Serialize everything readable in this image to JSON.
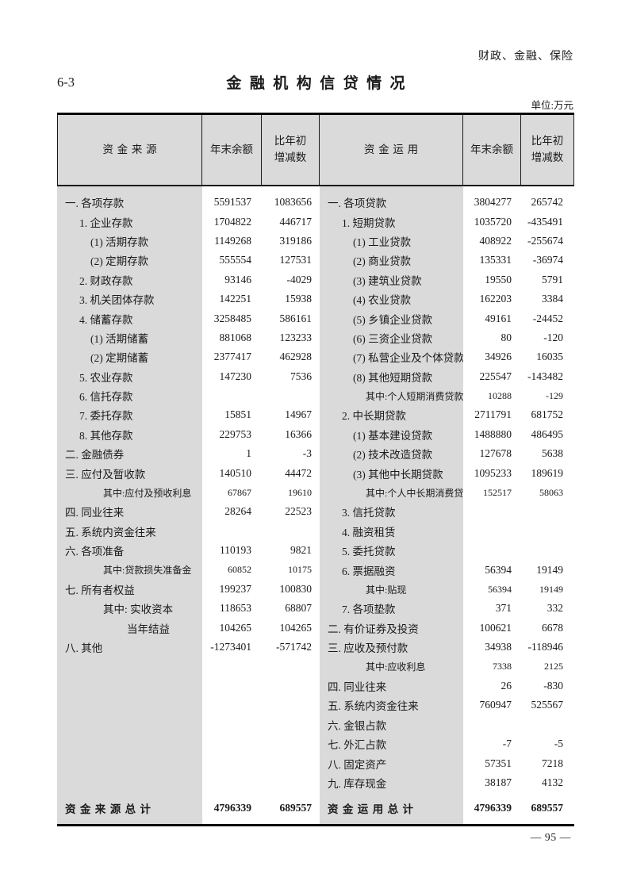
{
  "page": {
    "category": "财政、金融、保险",
    "table_no": "6-3",
    "title": "金融机构信贷情况",
    "unit": "单位:万元",
    "page_number": "— 95 —"
  },
  "table": {
    "headers": {
      "source": "资金来源",
      "balance": "年末余额",
      "change_line1": "比年初",
      "change_line2": "增减数",
      "use": "资金运用"
    },
    "left_rows": [
      {
        "label": "一. 各项存款",
        "indent": 0,
        "balance": "5591537",
        "change": "1083656"
      },
      {
        "label": "1. 企业存款",
        "indent": 1,
        "balance": "1704822",
        "change": "446717"
      },
      {
        "label": "(1) 活期存款",
        "indent": 2,
        "balance": "1149268",
        "change": "319186"
      },
      {
        "label": "(2) 定期存款",
        "indent": 2,
        "balance": "555554",
        "change": "127531"
      },
      {
        "label": "2. 财政存款",
        "indent": 1,
        "balance": "93146",
        "change": "-4029"
      },
      {
        "label": "3. 机关团体存款",
        "indent": 1,
        "balance": "142251",
        "change": "15938"
      },
      {
        "label": "4. 储蓄存款",
        "indent": 1,
        "balance": "3258485",
        "change": "586161"
      },
      {
        "label": "(1) 活期储蓄",
        "indent": 2,
        "balance": "881068",
        "change": "123233"
      },
      {
        "label": "(2) 定期储蓄",
        "indent": 2,
        "balance": "2377417",
        "change": "462928"
      },
      {
        "label": "5. 农业存款",
        "indent": 1,
        "balance": "147230",
        "change": "7536"
      },
      {
        "label": "6. 信托存款",
        "indent": 1,
        "balance": "",
        "change": ""
      },
      {
        "label": "7. 委托存款",
        "indent": 1,
        "balance": "15851",
        "change": "14967"
      },
      {
        "label": "8. 其他存款",
        "indent": 1,
        "balance": "229753",
        "change": "16366"
      },
      {
        "label": "二. 金融债券",
        "indent": 0,
        "balance": "1",
        "change": "-3"
      },
      {
        "label": "三. 应付及暂收款",
        "indent": 0,
        "balance": "140510",
        "change": "44472"
      },
      {
        "label": "其中:应付及预收利息",
        "indent": 3,
        "small": true,
        "balance": "67867",
        "change": "19610"
      },
      {
        "label": "四. 同业往来",
        "indent": 0,
        "balance": "28264",
        "change": "22523"
      },
      {
        "label": "五. 系统内资金往来",
        "indent": 0,
        "balance": "",
        "change": ""
      },
      {
        "label": "六. 各项准备",
        "indent": 0,
        "balance": "110193",
        "change": "9821"
      },
      {
        "label": "其中:贷款损失准备金",
        "indent": 3,
        "small": true,
        "balance": "60852",
        "change": "10175"
      },
      {
        "label": "七. 所有者权益",
        "indent": 0,
        "balance": "199237",
        "change": "100830"
      },
      {
        "label": "其中: 实收资本",
        "indent": 3,
        "balance": "118653",
        "change": "68807"
      },
      {
        "label": "当年结益",
        "indent": 4,
        "balance": "104265",
        "change": "104265"
      },
      {
        "label": "八. 其他",
        "indent": 0,
        "balance": "-1273401",
        "change": "-571742"
      }
    ],
    "right_rows": [
      {
        "label": "一. 各项贷款",
        "indent": 0,
        "balance": "3804277",
        "change": "265742"
      },
      {
        "label": "1. 短期贷款",
        "indent": 1,
        "balance": "1035720",
        "change": "-435491"
      },
      {
        "label": "(1) 工业贷款",
        "indent": 2,
        "balance": "408922",
        "change": "-255674"
      },
      {
        "label": "(2) 商业贷款",
        "indent": 2,
        "balance": "135331",
        "change": "-36974"
      },
      {
        "label": "(3) 建筑业贷款",
        "indent": 2,
        "balance": "19550",
        "change": "5791"
      },
      {
        "label": "(4) 农业贷款",
        "indent": 2,
        "balance": "162203",
        "change": "3384"
      },
      {
        "label": "(5) 乡镇企业贷款",
        "indent": 2,
        "balance": "49161",
        "change": "-24452"
      },
      {
        "label": "(6) 三资企业贷款",
        "indent": 2,
        "balance": "80",
        "change": "-120"
      },
      {
        "label": "(7) 私营企业及个体贷款",
        "indent": 2,
        "balance": "34926",
        "change": "16035"
      },
      {
        "label": "(8) 其他短期贷款",
        "indent": 2,
        "balance": "225547",
        "change": "-143482"
      },
      {
        "label": "其中:个人短期消费贷款",
        "indent": 3,
        "small": true,
        "balance": "10288",
        "change": "-129"
      },
      {
        "label": "2. 中长期贷款",
        "indent": 1,
        "balance": "2711791",
        "change": "681752"
      },
      {
        "label": "(1) 基本建设贷款",
        "indent": 2,
        "balance": "1488880",
        "change": "486495"
      },
      {
        "label": "(2) 技术改造贷款",
        "indent": 2,
        "balance": "127678",
        "change": "5638"
      },
      {
        "label": "(3) 其他中长期贷款",
        "indent": 2,
        "balance": "1095233",
        "change": "189619"
      },
      {
        "label": "其中:个人中长期消费贷款",
        "indent": 3,
        "small": true,
        "balance": "152517",
        "change": "58063"
      },
      {
        "label": "3. 信托贷款",
        "indent": 1,
        "balance": "",
        "change": ""
      },
      {
        "label": "4. 融资租赁",
        "indent": 1,
        "balance": "",
        "change": ""
      },
      {
        "label": "5. 委托贷款",
        "indent": 1,
        "balance": "",
        "change": ""
      },
      {
        "label": "6. 票据融资",
        "indent": 1,
        "balance": "56394",
        "change": "19149"
      },
      {
        "label": "其中:贴现",
        "indent": 3,
        "small": true,
        "balance": "56394",
        "change": "19149"
      },
      {
        "label": "7. 各项垫款",
        "indent": 1,
        "balance": "371",
        "change": "332"
      },
      {
        "label": "二. 有价证券及投资",
        "indent": 0,
        "balance": "100621",
        "change": "6678"
      },
      {
        "label": "三. 应收及预付款",
        "indent": 0,
        "balance": "34938",
        "change": "-118946"
      },
      {
        "label": "其中:应收利息",
        "indent": 3,
        "small": true,
        "balance": "7338",
        "change": "2125"
      },
      {
        "label": "四. 同业往来",
        "indent": 0,
        "balance": "26",
        "change": "-830"
      },
      {
        "label": "五. 系统内资金往来",
        "indent": 0,
        "balance": "760947",
        "change": "525567"
      },
      {
        "label": "六. 金银占款",
        "indent": 0,
        "balance": "",
        "change": ""
      },
      {
        "label": "七. 外汇占款",
        "indent": 0,
        "balance": "-7",
        "change": "-5"
      },
      {
        "label": "八. 固定资产",
        "indent": 0,
        "balance": "57351",
        "change": "7218"
      },
      {
        "label": "九. 库存现金",
        "indent": 0,
        "balance": "38187",
        "change": "4132"
      }
    ],
    "left_total": {
      "label": "资金来源总计",
      "balance": "4796339",
      "change": "689557"
    },
    "right_total": {
      "label": "资金运用总计",
      "balance": "4796339",
      "change": "689557"
    }
  }
}
